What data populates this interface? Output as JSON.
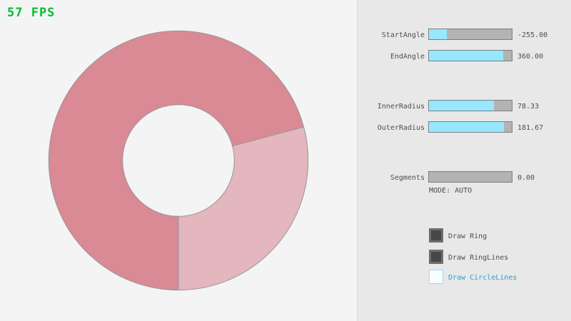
{
  "fps": {
    "text": "57 FPS",
    "color": "#00BE2D"
  },
  "ring": {
    "start_angle": -255.0,
    "end_angle": 360.0,
    "inner_radius": 78.33,
    "outer_radius": 181.67,
    "color_overlap": "#D98A95",
    "color_single": "#E4B6BD",
    "outline": "#969696"
  },
  "sliders": [
    {
      "label": "StartAngle",
      "value_text": "-255.00",
      "fraction": 0.217
    },
    {
      "label": "EndAngle",
      "value_text": "360.00",
      "fraction": 0.9
    },
    {
      "label": "InnerRadius",
      "value_text": "78.33",
      "fraction": 0.783
    },
    {
      "label": "OuterRadius",
      "value_text": "181.67",
      "fraction": 0.908
    },
    {
      "label": "Segments",
      "value_text": "0.00",
      "fraction": 0.0
    }
  ],
  "mode": {
    "text": "MODE: AUTO"
  },
  "checkboxes": [
    {
      "label": "Draw Ring",
      "checked": true
    },
    {
      "label": "Draw RingLines",
      "checked": true
    },
    {
      "label": "Draw CircleLines",
      "checked": false
    }
  ],
  "colors": {
    "slider_fill": "#97E8FF",
    "panel_bg": "#E8E8E8",
    "canvas_bg": "#F4F4F4"
  }
}
